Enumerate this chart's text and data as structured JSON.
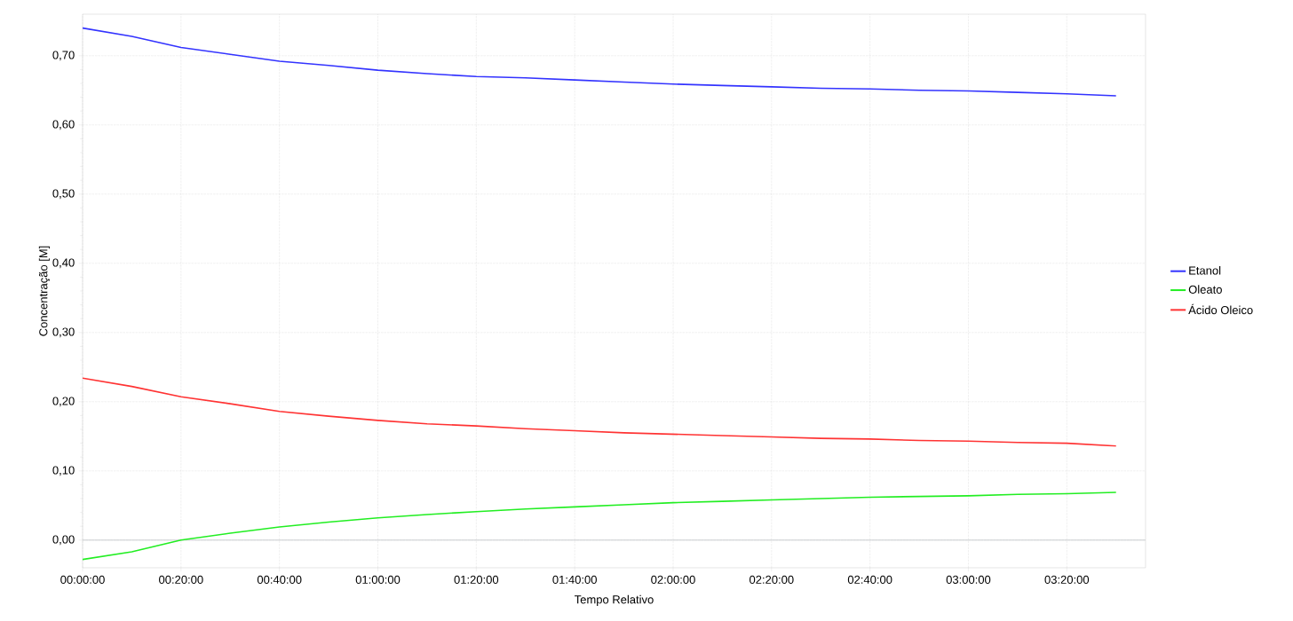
{
  "chart_data": {
    "type": "line",
    "xlabel": "Tempo Relativo",
    "ylabel": "Concentração [M]",
    "x": [
      0,
      0.1667,
      0.3333,
      0.5,
      0.6667,
      0.8333,
      1,
      1.1667,
      1.3333,
      1.5,
      1.6667,
      1.8333,
      2,
      2.1667,
      2.3333,
      2.5,
      2.6667,
      2.8333,
      3,
      3.1667,
      3.3333,
      3.5
    ],
    "series": [
      {
        "name": "Etanol",
        "color": "#3333ff",
        "values": [
          0.74,
          0.728,
          0.712,
          0.702,
          0.692,
          0.686,
          0.679,
          0.674,
          0.67,
          0.668,
          0.665,
          0.662,
          0.659,
          0.657,
          0.655,
          0.653,
          0.652,
          0.65,
          0.649,
          0.647,
          0.645,
          0.642
        ]
      },
      {
        "name": "Oleato",
        "color": "#22ee22",
        "values": [
          -0.028,
          -0.017,
          0.0,
          0.01,
          0.019,
          0.026,
          0.032,
          0.037,
          0.041,
          0.045,
          0.048,
          0.051,
          0.054,
          0.056,
          0.058,
          0.06,
          0.062,
          0.063,
          0.064,
          0.066,
          0.067,
          0.069
        ]
      },
      {
        "name": "Ácido Oleico",
        "color": "#ff3333",
        "values": [
          0.234,
          0.222,
          0.207,
          0.197,
          0.186,
          0.179,
          0.173,
          0.168,
          0.165,
          0.161,
          0.158,
          0.155,
          0.153,
          0.151,
          0.149,
          0.147,
          0.146,
          0.144,
          0.143,
          0.141,
          0.14,
          0.136
        ]
      }
    ],
    "xlim": [
      0,
      3.6
    ],
    "ylim": [
      -0.04,
      0.76
    ],
    "xticks": [
      {
        "value": 0,
        "label": "00:00:00"
      },
      {
        "value": 0.3333,
        "label": "00:20:00"
      },
      {
        "value": 0.6667,
        "label": "00:40:00"
      },
      {
        "value": 1,
        "label": "01:00:00"
      },
      {
        "value": 1.3333,
        "label": "01:20:00"
      },
      {
        "value": 1.6667,
        "label": "01:40:00"
      },
      {
        "value": 2,
        "label": "02:00:00"
      },
      {
        "value": 2.3333,
        "label": "02:20:00"
      },
      {
        "value": 2.6667,
        "label": "02:40:00"
      },
      {
        "value": 3,
        "label": "03:00:00"
      },
      {
        "value": 3.3333,
        "label": "03:20:00"
      }
    ],
    "yticks": [
      {
        "value": 0,
        "label": "0,00"
      },
      {
        "value": 0.1,
        "label": "0,10"
      },
      {
        "value": 0.2,
        "label": "0,20"
      },
      {
        "value": 0.3,
        "label": "0,30"
      },
      {
        "value": 0.4,
        "label": "0,40"
      },
      {
        "value": 0.5,
        "label": "0,50"
      },
      {
        "value": 0.6,
        "label": "0,60"
      },
      {
        "value": 0.7,
        "label": "0,70"
      }
    ],
    "ref_lines": [
      {
        "axis": "y",
        "value": 0,
        "color": "#c0c4c8"
      }
    ],
    "grid": true,
    "legend": "right",
    "marker": "none",
    "line_style": "solid"
  }
}
